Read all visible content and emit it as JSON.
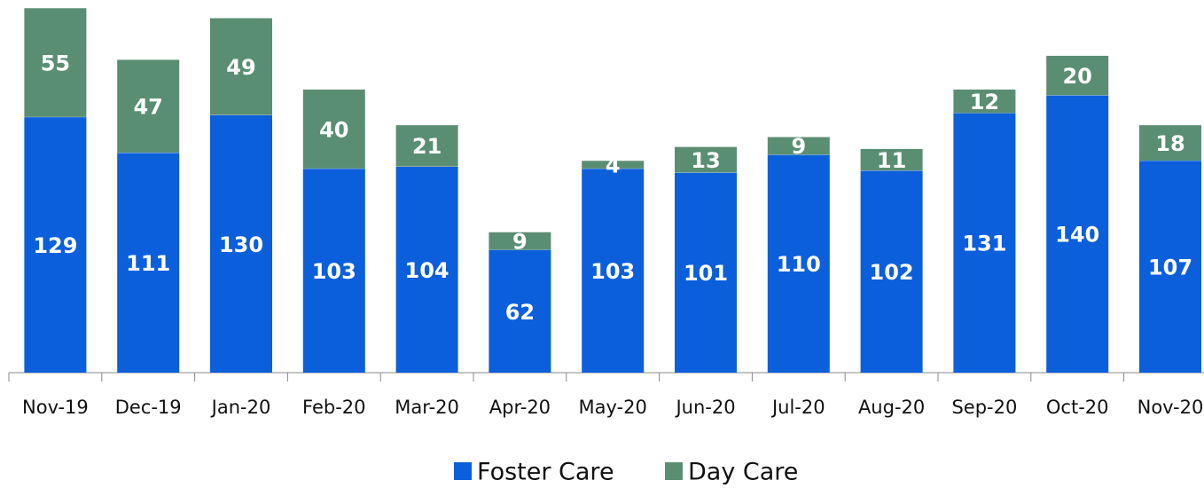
{
  "chart_data": {
    "type": "stacked-bar",
    "categories": [
      "Nov-19",
      "Dec-19",
      "Jan-20",
      "Feb-20",
      "Mar-20",
      "Apr-20",
      "May-20",
      "Jun-20",
      "Jul-20",
      "Aug-20",
      "Sep-20",
      "Oct-20",
      "Nov-20"
    ],
    "series": [
      {
        "name": "Foster Care",
        "color": "#0b5fdb",
        "values": [
          129,
          111,
          130,
          103,
          104,
          62,
          103,
          101,
          110,
          102,
          131,
          140,
          107
        ]
      },
      {
        "name": "Day Care",
        "color": "#5a8e72",
        "values": [
          55,
          47,
          49,
          40,
          21,
          9,
          4,
          13,
          9,
          11,
          12,
          20,
          18
        ]
      }
    ],
    "legend": "bottom"
  }
}
